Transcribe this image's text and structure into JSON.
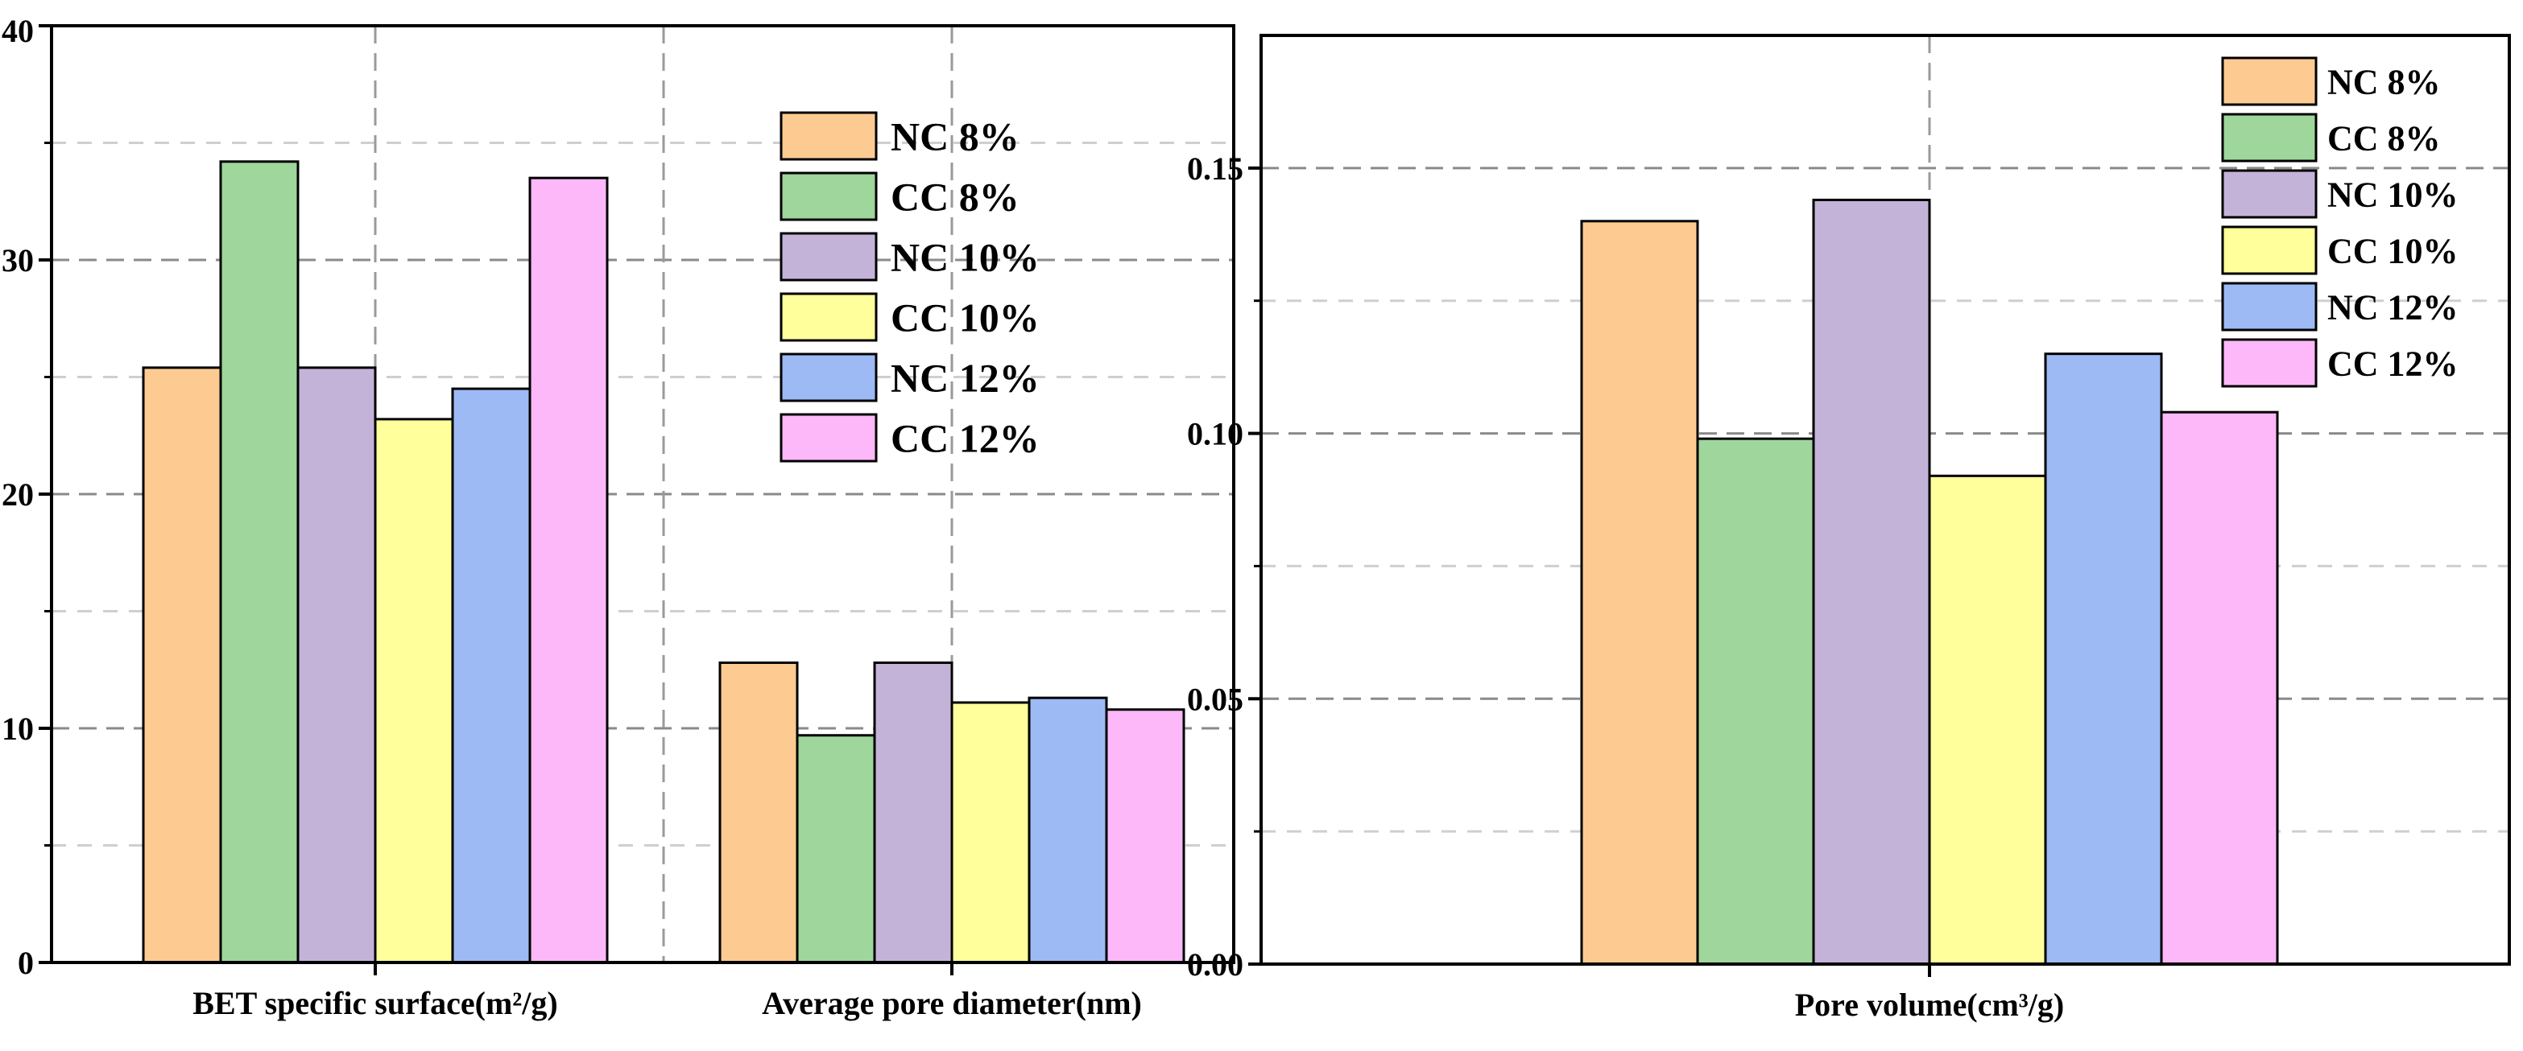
{
  "chart_data": [
    {
      "type": "bar",
      "categories": [
        "BET specific surface(m²/g)",
        "Average pore diameter(nm)"
      ],
      "series": [
        {
          "name": "NC 8%",
          "color": "#FDCB92",
          "values": [
            25.4,
            12.8
          ]
        },
        {
          "name": "CC 8%",
          "color": "#9ED69C",
          "values": [
            34.2,
            9.7
          ]
        },
        {
          "name": "NC 10%",
          "color": "#C4B3D9",
          "values": [
            25.4,
            12.8
          ]
        },
        {
          "name": "CC 10%",
          "color": "#FFFF9C",
          "values": [
            23.2,
            11.1
          ]
        },
        {
          "name": "NC 12%",
          "color": "#9DBAF5",
          "values": [
            24.5,
            11.3
          ]
        },
        {
          "name": "CC 12%",
          "color": "#FDB8FA",
          "values": [
            33.5,
            10.8
          ]
        }
      ],
      "ylim": [
        0,
        40
      ],
      "yticks": [
        "0",
        "10",
        "20",
        "30",
        "40"
      ],
      "grid": true,
      "legend": "upper-right"
    },
    {
      "type": "bar",
      "categories": [
        "Pore volume(cm³/g)"
      ],
      "series": [
        {
          "name": "NC 8%",
          "color": "#FDCB92",
          "values": [
            0.14
          ]
        },
        {
          "name": "CC 8%",
          "color": "#9ED69C",
          "values": [
            0.099
          ]
        },
        {
          "name": "NC 10%",
          "color": "#C4B3D9",
          "values": [
            0.144
          ]
        },
        {
          "name": "CC 10%",
          "color": "#FFFF9C",
          "values": [
            0.092
          ]
        },
        {
          "name": "NC 12%",
          "color": "#9DBAF5",
          "values": [
            0.115
          ]
        },
        {
          "name": "CC 12%",
          "color": "#FDB8FA",
          "values": [
            0.104
          ]
        }
      ],
      "ylim": [
        0,
        0.175
      ],
      "yticks": [
        "0.00",
        "0.05",
        "0.10",
        "0.15"
      ],
      "grid": true,
      "legend": "top-right"
    }
  ]
}
